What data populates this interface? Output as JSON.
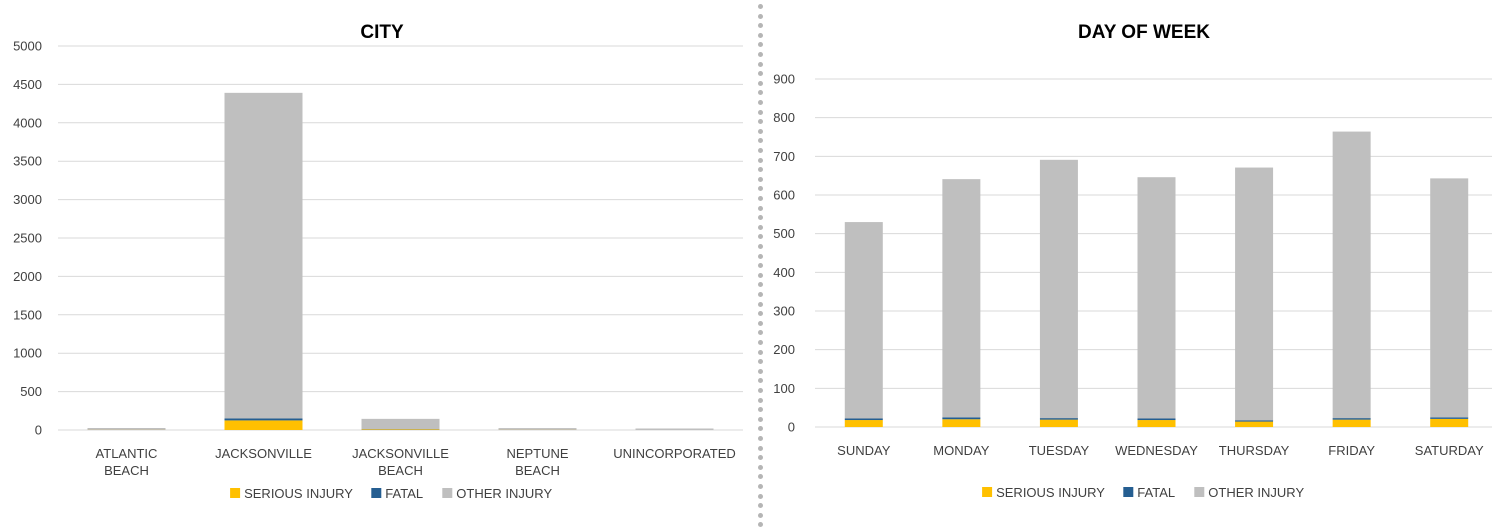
{
  "chart_data": [
    {
      "type": "bar",
      "stacked": true,
      "title": "CITY",
      "xlabel": "",
      "ylabel": "",
      "categories": [
        "ATLANTIC BEACH",
        "JACKSONVILLE",
        "JACKSONVILLE BEACH",
        "NEPTUNE BEACH",
        "UNINCORPORATED"
      ],
      "series": [
        {
          "name": "SERIOUS INJURY",
          "color": "#ffc000",
          "values": [
            1,
            125,
            8,
            1,
            0
          ]
        },
        {
          "name": "FATAL",
          "color": "#255e91",
          "values": [
            0,
            25,
            1,
            0,
            0
          ]
        },
        {
          "name": "OTHER INJURY",
          "color": "#bfbfbf",
          "values": [
            25,
            4240,
            136,
            24,
            1
          ]
        }
      ],
      "ylim": [
        0,
        5000
      ],
      "yticks": [
        0,
        500,
        1000,
        1500,
        2000,
        2500,
        3000,
        3500,
        4000,
        4500,
        5000
      ],
      "grid": true,
      "legend": "bottom"
    },
    {
      "type": "bar",
      "stacked": true,
      "title": "DAY OF WEEK",
      "xlabel": "",
      "ylabel": "",
      "categories": [
        "SUNDAY",
        "MONDAY",
        "TUESDAY",
        "WEDNESDAY",
        "THURSDAY",
        "FRIDAY",
        "SATURDAY"
      ],
      "series": [
        {
          "name": "SERIOUS INJURY",
          "color": "#ffc000",
          "values": [
            18,
            20,
            19,
            18,
            14,
            19,
            21
          ]
        },
        {
          "name": "FATAL",
          "color": "#255e91",
          "values": [
            4,
            5,
            4,
            4,
            3,
            4,
            4
          ]
        },
        {
          "name": "OTHER INJURY",
          "color": "#bfbfbf",
          "values": [
            508,
            616,
            668,
            624,
            654,
            741,
            618
          ]
        }
      ],
      "ylim": [
        0,
        900
      ],
      "yticks": [
        0,
        100,
        200,
        300,
        400,
        500,
        600,
        700,
        800,
        900
      ],
      "grid": true,
      "legend": "bottom"
    }
  ]
}
